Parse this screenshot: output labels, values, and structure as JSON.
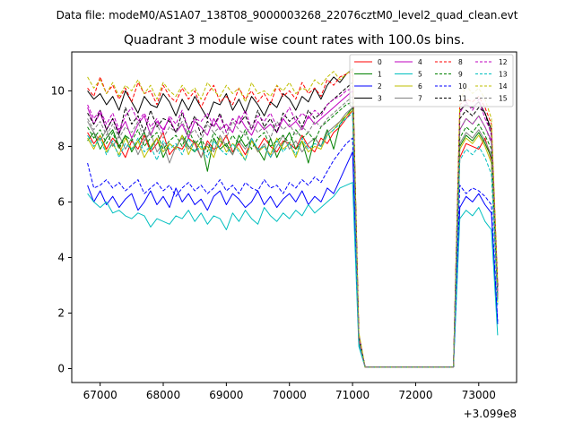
{
  "chart_data": {
    "type": "line",
    "suptitle": "Data file: modeM0/AS1A07_138T08_9000003268_22076cztM0_level2_quad_clean.evt",
    "title": "Quadrant 3 module wise count rates with 100.0s bins.",
    "xlabel": "",
    "ylabel": "",
    "x_offset_label": "+3.099e8",
    "xlim": [
      66550,
      73600
    ],
    "ylim": [
      -0.5,
      11.4
    ],
    "x_ticks": [
      67000,
      68000,
      69000,
      70000,
      71000,
      72000,
      73000
    ],
    "x_tick_labels": [
      "67000",
      "68000",
      "69000",
      "70000",
      "71000",
      "72000",
      "73000"
    ],
    "y_ticks": [
      0,
      2,
      4,
      6,
      8,
      10
    ],
    "y_tick_labels": [
      "0",
      "2",
      "4",
      "6",
      "8",
      "10"
    ],
    "legend_position": "top-right",
    "legend_columns": 4,
    "x": [
      66800,
      66900,
      67000,
      67100,
      67200,
      67300,
      67400,
      67500,
      67600,
      67700,
      67800,
      67900,
      68000,
      68100,
      68200,
      68300,
      68400,
      68500,
      68600,
      68700,
      68800,
      68900,
      69000,
      69100,
      69200,
      69300,
      69400,
      69500,
      69600,
      69700,
      69800,
      69900,
      70000,
      70100,
      70200,
      70300,
      70400,
      70500,
      70600,
      70700,
      70800,
      70900,
      71000,
      71100,
      71200,
      71300,
      71400,
      71500,
      71600,
      71700,
      71800,
      71900,
      72000,
      72100,
      72200,
      72300,
      72400,
      72500,
      72600,
      72700,
      72800,
      72900,
      73000,
      73100,
      73200,
      73300
    ],
    "series": [
      {
        "name": "0",
        "color": "#ff0000",
        "dash": "solid",
        "values": [
          8.5,
          8.1,
          8.4,
          7.9,
          8.3,
          8.0,
          7.6,
          8.2,
          7.9,
          8.4,
          7.8,
          8.1,
          8.5,
          7.7,
          8.0,
          7.9,
          8.3,
          8.1,
          7.6,
          8.2,
          7.9,
          8.0,
          8.4,
          7.8,
          8.1,
          7.7,
          8.2,
          7.9,
          8.3,
          8.0,
          7.8,
          8.2,
          8.1,
          7.9,
          8.4,
          8.0,
          7.8,
          8.3,
          8.1,
          8.5,
          8.7,
          9.0,
          9.3,
          1.0,
          0.05,
          0.05,
          0.05,
          0.05,
          0.05,
          0.05,
          0.05,
          0.05,
          0.05,
          0.05,
          0.05,
          0.05,
          0.05,
          0.05,
          0.05,
          7.6,
          8.1,
          8.0,
          7.9,
          8.3,
          7.5,
          2.8
        ]
      },
      {
        "name": "1",
        "color": "#008000",
        "dash": "solid",
        "values": [
          8.2,
          8.5,
          7.9,
          8.3,
          8.6,
          8.0,
          8.4,
          7.8,
          8.2,
          8.5,
          7.9,
          8.3,
          7.6,
          8.1,
          7.9,
          8.4,
          8.0,
          7.8,
          8.2,
          7.1,
          8.3,
          7.9,
          8.1,
          7.7,
          8.4,
          8.0,
          8.2,
          7.9,
          7.5,
          8.3,
          7.6,
          8.1,
          8.5,
          7.9,
          8.2,
          7.4,
          8.3,
          8.0,
          8.6,
          7.9,
          8.8,
          9.1,
          9.4,
          1.1,
          0.05,
          0.05,
          0.05,
          0.05,
          0.05,
          0.05,
          0.05,
          0.05,
          0.05,
          0.05,
          0.05,
          0.05,
          0.05,
          0.05,
          0.05,
          8.0,
          8.4,
          8.2,
          8.5,
          8.1,
          7.6,
          2.5
        ]
      },
      {
        "name": "2",
        "color": "#0000ff",
        "dash": "solid",
        "values": [
          6.6,
          6.0,
          6.4,
          5.9,
          6.2,
          5.8,
          6.1,
          6.3,
          5.7,
          6.0,
          6.4,
          5.9,
          6.2,
          5.8,
          6.5,
          6.0,
          6.3,
          5.9,
          6.1,
          5.7,
          6.2,
          6.4,
          5.9,
          6.3,
          6.1,
          5.8,
          6.0,
          6.4,
          5.9,
          6.2,
          5.8,
          6.1,
          6.3,
          6.0,
          6.4,
          5.9,
          6.2,
          6.0,
          6.5,
          6.3,
          6.8,
          7.3,
          7.8,
          0.9,
          0.05,
          0.05,
          0.05,
          0.05,
          0.05,
          0.05,
          0.05,
          0.05,
          0.05,
          0.05,
          0.05,
          0.05,
          0.05,
          0.05,
          0.05,
          5.8,
          6.2,
          6.0,
          6.3,
          5.9,
          5.6,
          1.6
        ]
      },
      {
        "name": "3",
        "color": "#000000",
        "dash": "solid",
        "values": [
          10.0,
          9.7,
          9.9,
          9.5,
          9.8,
          9.3,
          10.0,
          9.6,
          9.2,
          9.8,
          9.5,
          9.4,
          9.9,
          9.6,
          9.1,
          9.7,
          9.3,
          9.8,
          9.4,
          9.0,
          9.6,
          9.5,
          9.9,
          9.3,
          9.7,
          9.2,
          9.8,
          9.5,
          9.1,
          9.6,
          9.4,
          9.9,
          9.7,
          9.3,
          9.8,
          9.6,
          10.1,
          9.7,
          10.2,
          10.5,
          10.3,
          10.6,
          10.8,
          1.2,
          0.05,
          0.05,
          0.05,
          0.05,
          0.05,
          0.05,
          0.05,
          0.05,
          0.05,
          0.05,
          0.05,
          0.05,
          0.05,
          0.05,
          0.05,
          9.3,
          9.5,
          9.4,
          9.6,
          9.2,
          8.6,
          3.0
        ]
      },
      {
        "name": "4",
        "color": "#bf00bf",
        "dash": "solid",
        "values": [
          9.4,
          8.8,
          9.2,
          8.6,
          9.0,
          8.5,
          8.9,
          8.3,
          8.8,
          9.1,
          8.4,
          8.9,
          8.6,
          9.0,
          8.5,
          8.8,
          8.3,
          8.9,
          8.7,
          8.4,
          9.0,
          8.6,
          8.8,
          8.5,
          9.1,
          8.7,
          8.4,
          8.9,
          8.6,
          8.8,
          8.5,
          9.0,
          8.7,
          8.9,
          8.6,
          9.1,
          8.8,
          9.0,
          9.2,
          9.4,
          9.6,
          9.8,
          10.0,
          1.1,
          0.05,
          0.05,
          0.05,
          0.05,
          0.05,
          0.05,
          0.05,
          0.05,
          0.05,
          0.05,
          0.05,
          0.05,
          0.05,
          0.05,
          0.05,
          8.6,
          9.0,
          8.8,
          9.1,
          8.7,
          8.2,
          2.6
        ]
      },
      {
        "name": "5",
        "color": "#00bfbf",
        "dash": "solid",
        "values": [
          6.3,
          6.0,
          5.8,
          6.0,
          5.6,
          5.7,
          5.5,
          5.4,
          5.6,
          5.5,
          5.1,
          5.4,
          5.3,
          5.2,
          5.5,
          5.4,
          5.7,
          5.3,
          5.6,
          5.2,
          5.5,
          5.4,
          5.0,
          5.6,
          5.3,
          5.7,
          5.4,
          5.2,
          5.8,
          5.5,
          5.3,
          5.6,
          5.4,
          5.7,
          5.5,
          5.9,
          5.6,
          5.8,
          6.0,
          6.2,
          6.5,
          6.6,
          6.7,
          0.8,
          0.05,
          0.05,
          0.05,
          0.05,
          0.05,
          0.05,
          0.05,
          0.05,
          0.05,
          0.05,
          0.05,
          0.05,
          0.05,
          0.05,
          0.05,
          5.4,
          5.7,
          5.5,
          5.8,
          5.3,
          5.0,
          1.2
        ]
      },
      {
        "name": "6",
        "color": "#bfbf00",
        "dash": "solid",
        "values": [
          8.3,
          7.9,
          8.4,
          7.8,
          8.1,
          7.7,
          8.3,
          7.9,
          8.2,
          7.6,
          8.0,
          8.3,
          7.8,
          8.1,
          7.9,
          8.4,
          7.7,
          8.2,
          7.9,
          8.0,
          7.6,
          8.3,
          7.8,
          8.1,
          7.9,
          7.5,
          8.2,
          7.8,
          8.0,
          7.7,
          8.3,
          7.9,
          8.1,
          7.6,
          8.2,
          7.8,
          8.0,
          7.9,
          8.4,
          8.6,
          8.9,
          9.1,
          9.3,
          1.0,
          0.05,
          0.05,
          0.05,
          0.05,
          0.05,
          0.05,
          0.05,
          0.05,
          0.05,
          0.05,
          0.05,
          0.05,
          0.05,
          0.05,
          0.05,
          7.9,
          8.3,
          8.1,
          8.4,
          8.0,
          7.4,
          2.4
        ]
      },
      {
        "name": "7",
        "color": "#808080",
        "dash": "solid",
        "values": [
          8.9,
          8.5,
          8.2,
          8.6,
          8.0,
          8.4,
          7.9,
          8.3,
          7.7,
          8.2,
          8.5,
          7.8,
          8.1,
          7.4,
          8.0,
          8.3,
          7.9,
          8.2,
          7.6,
          8.1,
          7.8,
          8.4,
          8.0,
          7.7,
          8.2,
          7.9,
          8.3,
          7.8,
          8.1,
          7.6,
          8.0,
          8.4,
          7.9,
          8.2,
          7.8,
          8.1,
          8.3,
          8.0,
          8.5,
          8.7,
          8.9,
          9.2,
          9.4,
          1.0,
          0.05,
          0.05,
          0.05,
          0.05,
          0.05,
          0.05,
          0.05,
          0.05,
          0.05,
          0.05,
          0.05,
          0.05,
          0.05,
          0.05,
          0.05,
          8.1,
          8.5,
          8.3,
          8.6,
          8.2,
          7.7,
          2.5
        ]
      },
      {
        "name": "8",
        "color": "#ff0000",
        "dash": "dashed",
        "values": [
          10.1,
          9.8,
          10.5,
          9.9,
          10.2,
          9.7,
          10.1,
          9.6,
          10.3,
          9.9,
          10.0,
          9.5,
          10.2,
          9.8,
          9.6,
          10.1,
          9.7,
          10.0,
          9.4,
          9.9,
          10.2,
          9.6,
          9.8,
          9.5,
          10.1,
          9.7,
          10.0,
          9.6,
          9.9,
          9.5,
          10.2,
          9.8,
          10.0,
          9.7,
          10.3,
          9.9,
          10.1,
          9.8,
          10.4,
          10.2,
          10.5,
          10.6,
          10.7,
          1.2,
          0.05,
          0.05,
          0.05,
          0.05,
          0.05,
          0.05,
          0.05,
          0.05,
          0.05,
          0.05,
          0.05,
          0.05,
          0.05,
          0.05,
          0.05,
          9.5,
          9.7,
          9.6,
          9.8,
          9.4,
          8.8,
          3.0
        ]
      },
      {
        "name": "9",
        "color": "#008000",
        "dash": "dashed",
        "values": [
          8.7,
          8.3,
          8.6,
          8.1,
          8.5,
          7.9,
          8.4,
          8.2,
          8.6,
          8.0,
          8.3,
          8.5,
          7.9,
          8.2,
          8.4,
          8.0,
          8.6,
          8.1,
          8.3,
          7.8,
          8.5,
          8.2,
          8.0,
          8.4,
          8.1,
          8.6,
          7.9,
          8.3,
          8.5,
          8.0,
          8.2,
          8.4,
          8.1,
          8.6,
          8.3,
          8.5,
          8.2,
          8.7,
          8.9,
          9.1,
          9.3,
          9.5,
          9.6,
          1.1,
          0.05,
          0.05,
          0.05,
          0.05,
          0.05,
          0.05,
          0.05,
          0.05,
          0.05,
          0.05,
          0.05,
          0.05,
          0.05,
          0.05,
          0.05,
          8.3,
          8.7,
          8.5,
          8.8,
          8.4,
          7.9,
          2.6
        ]
      },
      {
        "name": "10",
        "color": "#0000ff",
        "dash": "dashed",
        "values": [
          7.4,
          6.5,
          6.6,
          6.8,
          6.5,
          6.7,
          6.4,
          6.6,
          6.8,
          6.3,
          6.5,
          6.7,
          6.4,
          6.6,
          6.2,
          6.5,
          6.7,
          6.4,
          6.6,
          6.3,
          6.5,
          6.8,
          6.4,
          6.6,
          6.3,
          6.7,
          6.5,
          6.4,
          6.8,
          6.5,
          6.6,
          6.3,
          6.7,
          6.5,
          6.8,
          6.6,
          6.9,
          6.7,
          7.1,
          7.5,
          7.8,
          8.1,
          8.3,
          1.0,
          0.05,
          0.05,
          0.05,
          0.05,
          0.05,
          0.05,
          0.05,
          0.05,
          0.05,
          0.05,
          0.05,
          0.05,
          0.05,
          0.05,
          0.05,
          6.6,
          6.3,
          6.5,
          6.4,
          6.2,
          5.9,
          1.7
        ]
      },
      {
        "name": "11",
        "color": "#000000",
        "dash": "dashed",
        "values": [
          9.2,
          8.8,
          9.3,
          8.6,
          9.0,
          8.4,
          9.4,
          8.8,
          9.1,
          8.5,
          9.3,
          8.7,
          9.0,
          8.9,
          8.5,
          9.2,
          8.6,
          9.1,
          8.4,
          8.9,
          8.7,
          9.2,
          8.5,
          9.0,
          8.8,
          9.1,
          8.6,
          9.3,
          8.7,
          9.0,
          8.5,
          9.2,
          8.9,
          9.1,
          8.7,
          9.3,
          9.0,
          9.2,
          9.5,
          9.7,
          9.9,
          10.1,
          10.3,
          1.2,
          0.05,
          0.05,
          0.05,
          0.05,
          0.05,
          0.05,
          0.05,
          0.05,
          0.05,
          0.05,
          0.05,
          0.05,
          0.05,
          0.05,
          0.05,
          9.0,
          9.3,
          9.1,
          9.4,
          9.2,
          8.4,
          2.9
        ]
      },
      {
        "name": "12",
        "color": "#bf00bf",
        "dash": "dashed",
        "values": [
          9.5,
          9.0,
          9.3,
          8.8,
          9.2,
          8.6,
          9.1,
          9.4,
          8.9,
          9.2,
          8.7,
          9.0,
          8.5,
          9.1,
          8.8,
          9.3,
          8.6,
          9.0,
          8.9,
          9.2,
          8.7,
          9.1,
          8.5,
          9.0,
          8.8,
          9.3,
          8.6,
          9.1,
          8.9,
          9.2,
          8.7,
          9.0,
          9.4,
          8.9,
          9.2,
          9.0,
          9.3,
          9.1,
          9.5,
          9.7,
          9.8,
          10.0,
          10.1,
          1.1,
          0.05,
          0.05,
          0.05,
          0.05,
          0.05,
          0.05,
          0.05,
          0.05,
          0.05,
          0.05,
          0.05,
          0.05,
          0.05,
          0.05,
          0.05,
          9.2,
          9.6,
          9.3,
          9.7,
          9.0,
          8.5,
          2.7
        ]
      },
      {
        "name": "13",
        "color": "#00bfbf",
        "dash": "dashed",
        "values": [
          8.4,
          8.0,
          8.3,
          7.7,
          8.2,
          7.6,
          8.1,
          7.9,
          8.3,
          7.8,
          8.0,
          7.5,
          8.2,
          7.9,
          8.1,
          7.7,
          8.3,
          7.8,
          8.0,
          7.6,
          8.2,
          7.9,
          7.7,
          8.1,
          7.8,
          7.5,
          8.3,
          7.9,
          8.0,
          7.6,
          8.2,
          7.8,
          8.1,
          7.7,
          8.3,
          7.9,
          8.1,
          8.0,
          8.4,
          8.6,
          8.8,
          9.0,
          9.2,
          0.9,
          0.05,
          0.05,
          0.05,
          0.05,
          0.05,
          0.05,
          0.05,
          0.05,
          0.05,
          0.05,
          0.05,
          0.05,
          0.05,
          0.05,
          0.05,
          7.5,
          7.9,
          7.7,
          8.0,
          7.6,
          7.0,
          2.3
        ]
      },
      {
        "name": "14",
        "color": "#bfbf00",
        "dash": "dashed",
        "values": [
          10.5,
          10.1,
          10.4,
          9.9,
          10.3,
          9.8,
          10.2,
          10.0,
          10.4,
          9.9,
          10.2,
          9.7,
          10.3,
          10.0,
          9.8,
          10.2,
          9.9,
          10.1,
          9.7,
          10.3,
          10.0,
          9.8,
          10.2,
          9.9,
          10.1,
          9.6,
          10.3,
          9.9,
          10.0,
          9.8,
          10.2,
          10.0,
          10.3,
          9.9,
          10.1,
          10.0,
          10.4,
          10.2,
          10.5,
          10.7,
          10.4,
          10.6,
          10.8,
          1.3,
          0.05,
          0.05,
          0.05,
          0.05,
          0.05,
          0.05,
          0.05,
          0.05,
          0.05,
          0.05,
          0.05,
          0.05,
          0.05,
          0.05,
          0.05,
          9.6,
          10.2,
          9.9,
          10.1,
          9.7,
          9.0,
          3.1
        ]
      },
      {
        "name": "15",
        "color": "#808080",
        "dash": "dashed",
        "values": [
          9.0,
          8.6,
          8.9,
          8.4,
          8.8,
          8.3,
          8.7,
          8.5,
          8.9,
          8.2,
          8.6,
          8.8,
          8.3,
          8.7,
          8.5,
          8.9,
          8.4,
          8.6,
          8.2,
          8.8,
          8.5,
          8.7,
          8.3,
          8.9,
          8.6,
          8.4,
          8.8,
          8.5,
          8.7,
          8.3,
          8.9,
          8.6,
          8.8,
          8.4,
          8.7,
          8.5,
          8.9,
          8.7,
          9.0,
          9.2,
          9.4,
          9.6,
          9.8,
          1.0,
          0.05,
          0.05,
          0.05,
          0.05,
          0.05,
          0.05,
          0.05,
          0.05,
          0.05,
          0.05,
          0.05,
          0.05,
          0.05,
          0.05,
          0.05,
          8.6,
          9.0,
          8.8,
          9.1,
          8.7,
          8.1,
          2.5
        ]
      }
    ]
  }
}
